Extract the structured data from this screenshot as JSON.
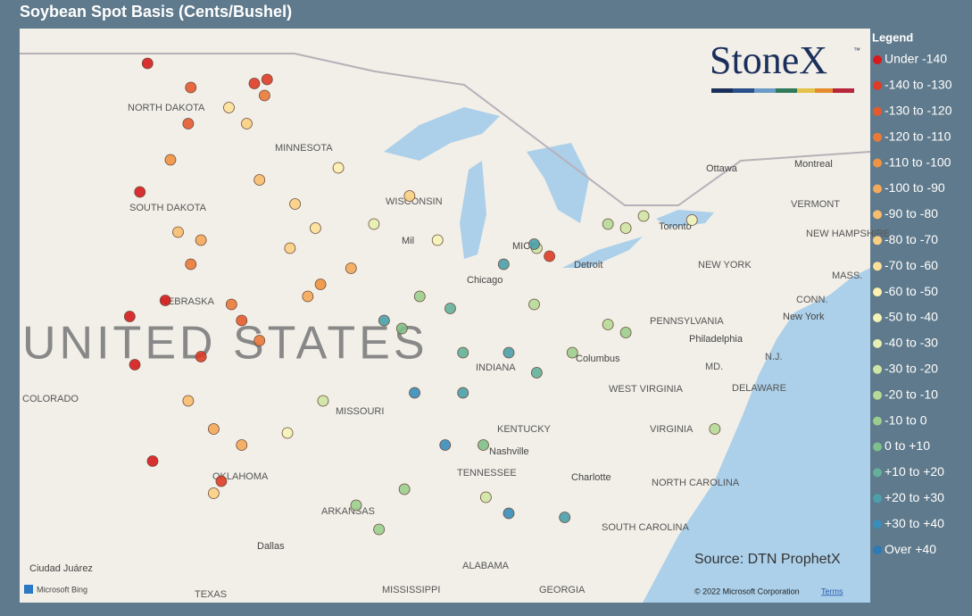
{
  "title": "Soybean Spot Basis (Cents/Bushel)",
  "legend": {
    "title": "Legend",
    "items": [
      {
        "label": "Under -140",
        "color": "#d7191c"
      },
      {
        "label": "-140 to -130",
        "color": "#de3b25"
      },
      {
        "label": "-130 to -120",
        "color": "#e45a2f"
      },
      {
        "label": "-120 to -110",
        "color": "#ea7a38"
      },
      {
        "label": "-110 to -100",
        "color": "#f09441"
      },
      {
        "label": "-100 to -90",
        "color": "#f5a95a"
      },
      {
        "label": "-90 to -80",
        "color": "#f8bd6e"
      },
      {
        "label": "-80 to -70",
        "color": "#fbcf83"
      },
      {
        "label": "-70 to -60",
        "color": "#fde19a"
      },
      {
        "label": "-60 to -50",
        "color": "#fef0b0"
      },
      {
        "label": "-50 to -40",
        "color": "#f5f4b8"
      },
      {
        "label": "-40 to -30",
        "color": "#e6efb0"
      },
      {
        "label": "-30 to -20",
        "color": "#cfe5a4"
      },
      {
        "label": "-20 to -10",
        "color": "#b6da98"
      },
      {
        "label": "-10 to 0",
        "color": "#9bce8e"
      },
      {
        "label": "0 to +10",
        "color": "#7fbf8a"
      },
      {
        "label": "+10 to +20",
        "color": "#64b09a"
      },
      {
        "label": "+20 to +30",
        "color": "#4ba0aa"
      },
      {
        "label": "+30 to +40",
        "color": "#3a8dbb"
      },
      {
        "label": "Over +40",
        "color": "#2c7bb6"
      }
    ]
  },
  "logo": {
    "text": "StoneX",
    "mark": "™"
  },
  "source": "Source: DTN ProphetX",
  "attribution": {
    "provider": "Microsoft Bing",
    "copyright": "© 2022 Microsoft Corporation",
    "terms": "Terms"
  },
  "map_labels": [
    "NORTH DAKOTA",
    "MINNESOTA",
    "SOUTH DAKOTA",
    "WISCONSIN",
    "NEBRASKA",
    "UNITED STATES",
    "COLORADO",
    "MISSOURI",
    "INDIANA",
    "KENTUCKY",
    "TENNESSEE",
    "ARKANSAS",
    "OKLAHOMA",
    "TEXAS",
    "MISSISSIPPI",
    "ALABAMA",
    "GEORGIA",
    "SOUTH CAROLINA",
    "NORTH CAROLINA",
    "VIRGINIA",
    "WEST VIRGINIA",
    "PENNSYLVANIA",
    "NEW YORK",
    "VERMONT",
    "NEW HAMPSHIRE",
    "MASS.",
    "CONN.",
    "MD.",
    "N.J.",
    "DELAWARE",
    "Ottawa",
    "Montreal",
    "Toronto",
    "Chicago",
    "Detroit",
    "Columbus",
    "Nashville",
    "Charlotte",
    "Philadelphia",
    "New York",
    "Dallas",
    "Ciudad Juárez",
    "MICH",
    "Mil"
  ],
  "points": [
    {
      "lon": -99.8,
      "lat": 46.7,
      "bin": 0
    },
    {
      "lon": -95.1,
      "lat": 46.3,
      "bin": 1
    },
    {
      "lon": -98.9,
      "lat": 44.3,
      "bin": 4
    },
    {
      "lon": -100.1,
      "lat": 43.5,
      "bin": 0
    },
    {
      "lon": -95.4,
      "lat": 43.8,
      "bin": 6
    },
    {
      "lon": -94.0,
      "lat": 43.2,
      "bin": 7
    },
    {
      "lon": -92.3,
      "lat": 44.1,
      "bin": 9
    },
    {
      "lon": -89.5,
      "lat": 43.4,
      "bin": 7
    },
    {
      "lon": -90.9,
      "lat": 42.7,
      "bin": 11
    },
    {
      "lon": -88.4,
      "lat": 42.3,
      "bin": 10
    },
    {
      "lon": -84.5,
      "lat": 42.1,
      "bin": 12
    },
    {
      "lon": -81.7,
      "lat": 42.7,
      "bin": 13
    },
    {
      "lon": -80.3,
      "lat": 42.9,
      "bin": 12
    },
    {
      "lon": -84.0,
      "lat": 41.9,
      "bin": 1
    },
    {
      "lon": -85.8,
      "lat": 41.7,
      "bin": 17
    },
    {
      "lon": -87.9,
      "lat": 40.6,
      "bin": 16
    },
    {
      "lon": -89.1,
      "lat": 40.9,
      "bin": 14
    },
    {
      "lon": -89.8,
      "lat": 40.1,
      "bin": 15
    },
    {
      "lon": -90.5,
      "lat": 40.3,
      "bin": 17
    },
    {
      "lon": -87.4,
      "lat": 39.5,
      "bin": 16
    },
    {
      "lon": -89.3,
      "lat": 38.5,
      "bin": 18
    },
    {
      "lon": -87.4,
      "lat": 38.5,
      "bin": 17
    },
    {
      "lon": -88.1,
      "lat": 37.2,
      "bin": 18
    },
    {
      "lon": -85.6,
      "lat": 35.5,
      "bin": 18
    },
    {
      "lon": -83.4,
      "lat": 35.4,
      "bin": 17
    },
    {
      "lon": -84.6,
      "lat": 42.2,
      "bin": 17
    },
    {
      "lon": -84.6,
      "lat": 40.7,
      "bin": 13
    },
    {
      "lon": -83.1,
      "lat": 39.5,
      "bin": 14
    },
    {
      "lon": -81.7,
      "lat": 40.2,
      "bin": 13
    },
    {
      "lon": -81.0,
      "lat": 40.0,
      "bin": 14
    },
    {
      "lon": -85.6,
      "lat": 39.5,
      "bin": 17
    },
    {
      "lon": -84.5,
      "lat": 39.0,
      "bin": 16
    },
    {
      "lon": -86.6,
      "lat": 37.2,
      "bin": 15
    },
    {
      "lon": -86.5,
      "lat": 35.9,
      "bin": 12
    },
    {
      "lon": -91.6,
      "lat": 35.7,
      "bin": 14
    },
    {
      "lon": -90.7,
      "lat": 35.1,
      "bin": 14
    },
    {
      "lon": -89.7,
      "lat": 36.1,
      "bin": 14
    },
    {
      "lon": -77.5,
      "lat": 37.6,
      "bin": 13
    },
    {
      "lon": -81.0,
      "lat": 42.6,
      "bin": 12
    },
    {
      "lon": -78.4,
      "lat": 42.8,
      "bin": 10
    },
    {
      "lon": -92.9,
      "lat": 38.3,
      "bin": 12
    },
    {
      "lon": -94.3,
      "lat": 37.5,
      "bin": 10
    },
    {
      "lon": -96.1,
      "lat": 40.3,
      "bin": 2
    },
    {
      "lon": -96.5,
      "lat": 40.7,
      "bin": 3
    },
    {
      "lon": -95.4,
      "lat": 39.8,
      "bin": 3
    },
    {
      "lon": -97.7,
      "lat": 39.4,
      "bin": 1
    },
    {
      "lon": -100.3,
      "lat": 39.2,
      "bin": 0
    },
    {
      "lon": -100.5,
      "lat": 40.4,
      "bin": 0
    },
    {
      "lon": -99.1,
      "lat": 40.8,
      "bin": 0
    },
    {
      "lon": -98.2,
      "lat": 38.3,
      "bin": 6
    },
    {
      "lon": -97.2,
      "lat": 37.6,
      "bin": 5
    },
    {
      "lon": -96.1,
      "lat": 37.2,
      "bin": 5
    },
    {
      "lon": -96.9,
      "lat": 36.3,
      "bin": 1
    },
    {
      "lon": -99.6,
      "lat": 36.8,
      "bin": 0
    },
    {
      "lon": -97.2,
      "lat": 36.0,
      "bin": 7
    },
    {
      "lon": -93.5,
      "lat": 40.9,
      "bin": 5
    },
    {
      "lon": -91.8,
      "lat": 41.6,
      "bin": 5
    },
    {
      "lon": -94.2,
      "lat": 42.1,
      "bin": 7
    },
    {
      "lon": -93.2,
      "lat": 42.6,
      "bin": 8
    },
    {
      "lon": -95.9,
      "lat": 45.2,
      "bin": 7
    },
    {
      "lon": -96.6,
      "lat": 45.6,
      "bin": 8
    },
    {
      "lon": -95.2,
      "lat": 45.9,
      "bin": 3
    },
    {
      "lon": -95.6,
      "lat": 46.2,
      "bin": 1
    },
    {
      "lon": -98.1,
      "lat": 46.1,
      "bin": 2
    },
    {
      "lon": -98.2,
      "lat": 45.2,
      "bin": 2
    },
    {
      "lon": -93.0,
      "lat": 41.2,
      "bin": 4
    },
    {
      "lon": -97.7,
      "lat": 42.3,
      "bin": 5
    },
    {
      "lon": -98.6,
      "lat": 42.5,
      "bin": 6
    },
    {
      "lon": -98.1,
      "lat": 41.7,
      "bin": 3
    }
  ]
}
